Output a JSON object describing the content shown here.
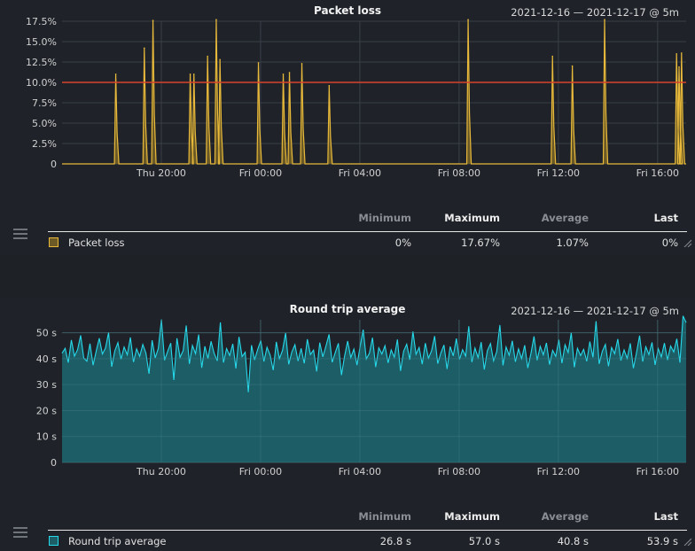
{
  "panels": [
    {
      "title": "Packet loss",
      "range_label": "2021-12-16 — 2021-12-17 @ 5m",
      "legend": {
        "headers": {
          "min": "Minimum",
          "max": "Maximum",
          "avg": "Average",
          "last": "Last"
        },
        "series_name": "Packet loss",
        "min": "0%",
        "max": "17.67%",
        "avg": "1.07%",
        "last": "0%"
      }
    },
    {
      "title": "Round trip average",
      "range_label": "2021-12-16 — 2021-12-17 @ 5m",
      "legend": {
        "headers": {
          "min": "Minimum",
          "max": "Maximum",
          "avg": "Average",
          "last": "Last"
        },
        "series_name": "Round trip average",
        "min": "26.8 s",
        "max": "57.0 s",
        "avg": "40.8 s",
        "last": "53.9 s"
      }
    }
  ],
  "colors": {
    "packet_loss_line": "#e8b93a",
    "packet_loss_fill": "#6b5a26",
    "threshold": "#d9422b",
    "rtt_line": "#26d9ea",
    "rtt_fill": "#1c5d66",
    "grid": "#3a3f47"
  },
  "chart_data": [
    {
      "type": "area",
      "title": "Packet loss",
      "x_unit": "hours from Thu 16:00",
      "x_range": [
        0,
        25.15
      ],
      "x_ticks": [
        {
          "x": 4,
          "label": "Thu 20:00"
        },
        {
          "x": 8,
          "label": "Fri 00:00"
        },
        {
          "x": 12,
          "label": "Fri 04:00"
        },
        {
          "x": 16,
          "label": "Fri 08:00"
        },
        {
          "x": 20,
          "label": "Fri 12:00"
        },
        {
          "x": 24,
          "label": "Fri 16:00"
        }
      ],
      "y_range": [
        0,
        17.5
      ],
      "y_ticks": [
        {
          "v": 0,
          "label": "0"
        },
        {
          "v": 2.5,
          "label": "2.5%"
        },
        {
          "v": 5,
          "label": "5.0%"
        },
        {
          "v": 7.5,
          "label": "7.5%"
        },
        {
          "v": 10,
          "label": "10.0%"
        },
        {
          "v": 12.5,
          "label": "12.5%"
        },
        {
          "v": 15,
          "label": "15.0%"
        },
        {
          "v": 17.5,
          "label": "17.5%"
        }
      ],
      "threshold": 10,
      "series": [
        {
          "name": "Packet loss",
          "spikes": [
            [
              2.2,
              11.0
            ],
            [
              3.35,
              14.2
            ],
            [
              3.7,
              17.6
            ],
            [
              5.2,
              11.0
            ],
            [
              5.35,
              11.0
            ],
            [
              5.9,
              13.2
            ],
            [
              6.25,
              17.7
            ],
            [
              6.4,
              12.8
            ],
            [
              7.95,
              12.4
            ],
            [
              8.95,
              11.0
            ],
            [
              9.2,
              11.2
            ],
            [
              9.7,
              12.3
            ],
            [
              10.8,
              9.6
            ],
            [
              16.4,
              17.7
            ],
            [
              19.8,
              13.2
            ],
            [
              20.6,
              12.0
            ],
            [
              21.9,
              17.7
            ],
            [
              24.8,
              13.5
            ],
            [
              24.9,
              11.9
            ],
            [
              25.0,
              13.6
            ]
          ]
        }
      ]
    },
    {
      "type": "area",
      "title": "Round trip average",
      "x_unit": "hours from Thu 16:00",
      "x_range": [
        0,
        25.15
      ],
      "x_ticks": [
        {
          "x": 4,
          "label": "Thu 20:00"
        },
        {
          "x": 8,
          "label": "Fri 00:00"
        },
        {
          "x": 12,
          "label": "Fri 04:00"
        },
        {
          "x": 16,
          "label": "Fri 08:00"
        },
        {
          "x": 20,
          "label": "Fri 12:00"
        },
        {
          "x": 24,
          "label": "Fri 16:00"
        }
      ],
      "y_range": [
        0,
        55
      ],
      "y_ticks": [
        {
          "v": 0,
          "label": "0"
        },
        {
          "v": 10,
          "label": "10 s"
        },
        {
          "v": 20,
          "label": "20 s"
        },
        {
          "v": 30,
          "label": "30 s"
        },
        {
          "v": 40,
          "label": "40 s"
        },
        {
          "v": 50,
          "label": "50 s"
        }
      ],
      "series": [
        {
          "name": "Round trip average",
          "approx_mean": 40.8,
          "min": 26.8,
          "max": 57.0,
          "last": 53.9,
          "values": [
            42.1,
            44.0,
            38.5,
            47.2,
            41.0,
            43.5,
            49.0,
            40.2,
            39.0,
            45.8,
            37.5,
            42.9,
            47.9,
            41.8,
            44.1,
            50.1,
            36.9,
            43.0,
            46.2,
            39.8,
            44.5,
            41.5,
            48.2,
            38.7,
            43.8,
            40.9,
            45.5,
            42.2,
            34.2,
            47.1,
            40.3,
            44.0,
            55.1,
            39.4,
            42.8,
            46.0,
            31.8,
            47.9,
            40.5,
            43.1,
            52.8,
            38.0,
            45.1,
            41.9,
            49.3,
            36.5,
            44.8,
            40.1,
            46.7,
            42.0,
            39.2,
            54.0,
            38.5,
            43.9,
            41.2,
            45.7,
            36.2,
            48.4,
            40.8,
            42.5,
            27.1,
            45.2,
            39.5,
            43.6,
            47.0,
            38.9,
            44.4,
            41.4,
            35.6,
            46.5,
            40.0,
            43.2,
            49.9,
            37.8,
            42.6,
            45.4,
            39.1,
            44.0,
            38.2,
            47.5,
            41.6,
            43.3,
            35.1,
            46.2,
            40.7,
            44.9,
            49.4,
            38.6,
            42.4,
            45.9,
            33.7,
            41.0,
            46.8,
            40.4,
            43.7,
            37.5,
            44.6,
            51.2,
            39.9,
            42.1,
            48.1,
            36.8,
            44.2,
            41.8,
            45.0,
            38.4,
            43.4,
            40.6,
            47.4,
            35.3,
            42.9,
            45.6,
            39.6,
            50.5,
            41.7,
            44.3,
            37.9,
            46.0,
            40.2,
            43.0,
            48.7,
            38.1,
            42.2,
            45.3,
            36.0,
            44.7,
            41.1,
            47.8,
            39.7,
            43.5,
            41.0,
            52.5,
            38.7,
            44.1,
            40.4,
            46.4,
            35.8,
            43.1,
            45.8,
            39.2,
            42.7,
            53.0,
            37.4,
            44.5,
            41.3,
            46.9,
            38.8,
            43.8,
            40.0,
            45.2,
            36.4,
            42.0,
            48.6,
            39.4,
            44.8,
            41.5,
            46.1,
            37.7,
            43.2,
            40.9,
            47.3,
            38.3,
            45.4,
            42.4,
            50.0,
            36.7,
            44.0,
            41.2,
            43.6,
            39.0,
            46.6,
            40.5,
            54.5,
            38.0,
            42.8,
            45.5,
            37.1,
            44.3,
            41.9,
            47.6,
            39.3,
            43.4,
            40.1,
            45.9,
            36.3,
            42.3,
            48.9,
            38.9,
            44.6,
            41.6,
            46.3,
            37.6,
            43.9,
            40.7,
            46.0,
            39.5,
            44.9,
            42.6,
            47.7,
            38.5,
            56.5,
            53.9
          ]
        }
      ]
    }
  ]
}
